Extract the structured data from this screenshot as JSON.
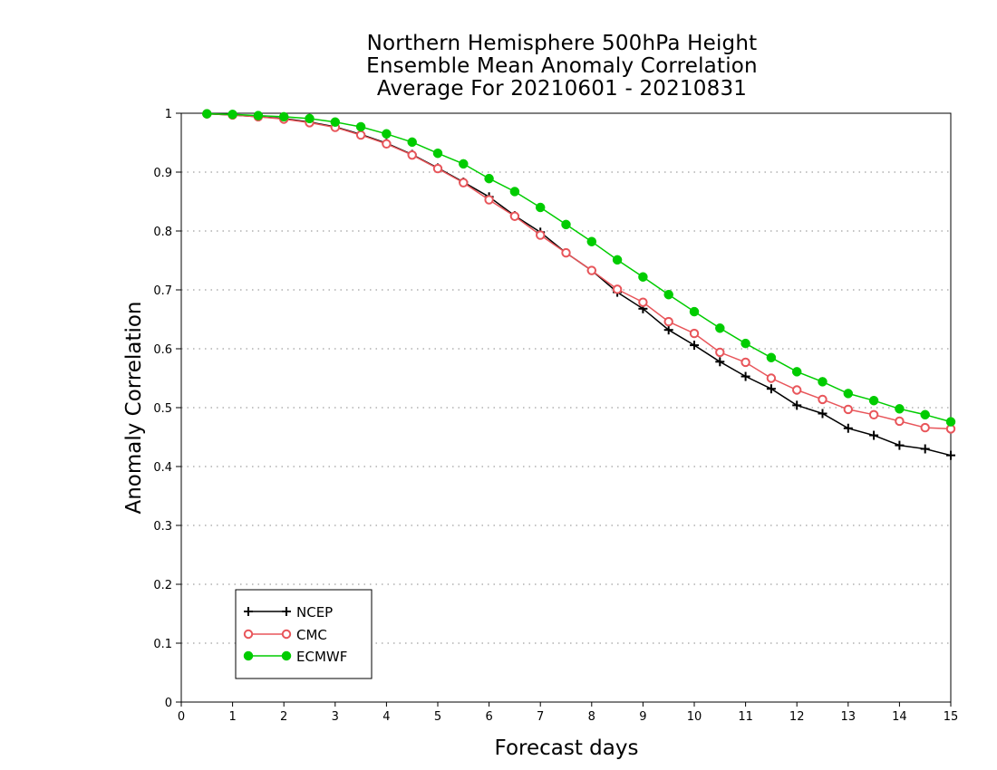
{
  "chart_data": {
    "type": "line",
    "title": [
      "Northern Hemisphere 500hPa Height",
      "Ensemble Mean Anomaly Correlation",
      "Average For 20210601 - 20210831"
    ],
    "xlabel": "Forecast days",
    "ylabel": "Anomaly Correlation",
    "xlim": [
      0,
      15
    ],
    "ylim": [
      0,
      1
    ],
    "xticks": [
      "0",
      "1",
      "2",
      "3",
      "4",
      "5",
      "6",
      "7",
      "8",
      "9",
      "10",
      "11",
      "12",
      "13",
      "14",
      "15"
    ],
    "yticks": [
      "0",
      "0.1",
      "0.2",
      "0.3",
      "0.4",
      "0.5",
      "0.6",
      "0.7",
      "0.8",
      "0.9",
      "1"
    ],
    "grid": "horizontal-dotted",
    "legend_position": "bottom-left",
    "x": [
      0.5,
      1,
      1.5,
      2,
      2.5,
      3,
      3.5,
      4,
      4.5,
      5,
      5.5,
      6,
      6.5,
      7,
      7.5,
      8,
      8.5,
      9,
      9.5,
      10,
      10.5,
      11,
      11.5,
      12,
      12.5,
      13,
      13.5,
      14,
      14.5,
      15
    ],
    "series": [
      {
        "name": "NCEP",
        "color": "#000000",
        "marker": "plus",
        "values": [
          0.999,
          0.997,
          0.994,
          0.991,
          0.985,
          0.977,
          0.964,
          0.949,
          0.93,
          0.907,
          0.883,
          0.858,
          0.826,
          0.798,
          0.763,
          0.733,
          0.696,
          0.668,
          0.632,
          0.606,
          0.578,
          0.553,
          0.532,
          0.504,
          0.49,
          0.465,
          0.453,
          0.436,
          0.43,
          0.419
        ]
      },
      {
        "name": "CMC",
        "color": "#e8555a",
        "marker": "open-circle",
        "values": [
          0.999,
          0.997,
          0.994,
          0.99,
          0.984,
          0.976,
          0.963,
          0.948,
          0.929,
          0.906,
          0.882,
          0.853,
          0.825,
          0.793,
          0.763,
          0.733,
          0.701,
          0.679,
          0.646,
          0.626,
          0.594,
          0.577,
          0.55,
          0.53,
          0.514,
          0.497,
          0.488,
          0.477,
          0.466,
          0.464
        ]
      },
      {
        "name": "ECMWF",
        "color": "#00cc00",
        "marker": "filled-circle",
        "values": [
          0.999,
          0.998,
          0.996,
          0.994,
          0.991,
          0.985,
          0.977,
          0.965,
          0.951,
          0.932,
          0.914,
          0.889,
          0.867,
          0.84,
          0.811,
          0.782,
          0.751,
          0.722,
          0.692,
          0.663,
          0.635,
          0.609,
          0.585,
          0.561,
          0.544,
          0.524,
          0.512,
          0.498,
          0.488,
          0.476
        ]
      }
    ]
  }
}
